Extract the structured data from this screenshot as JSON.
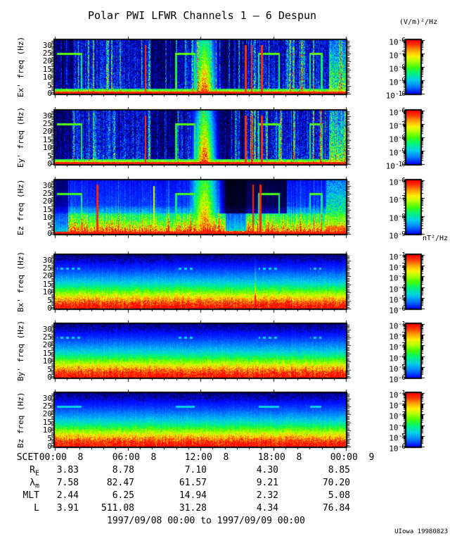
{
  "title": "Polar PWI LFWR Channels 1 — 6 Despun",
  "footer": "1997/09/08 00:00 to 1997/09/09 00:00",
  "credit": "UIowa 19980823",
  "chart_data": {
    "type": "heatmap",
    "title": "Polar PWI LFWR Channels 1 — 6 Despun",
    "x_axis": {
      "label": "SCET",
      "major_ticks": [
        "00:00",
        "06:00",
        "12:00",
        "18:00",
        "00:00"
      ],
      "tick_day": [
        "8",
        "8",
        "8",
        "8",
        "9"
      ],
      "minor_tick_interval_hours": 1,
      "start": "1997/09/08 00:00",
      "end": "1997/09/09 00:00"
    },
    "y_axis": {
      "unit": "Hz",
      "ticks": [
        0,
        5,
        10,
        15,
        20,
        25,
        30
      ],
      "lim": [
        0,
        33.4
      ]
    },
    "colorbar_units": {
      "electric": "(V/m)²/Hz",
      "magnetic": "nT²/Hz"
    },
    "panels": [
      {
        "id": "ex",
        "ylabel": "Ex' freq (Hz)",
        "kind": "electric",
        "seed": 101,
        "colorbar_exponents": [
          "-6",
          "-7",
          "-8",
          "-9",
          "-10"
        ]
      },
      {
        "id": "ey",
        "ylabel": "Ey' freq (Hz)",
        "kind": "electric",
        "seed": 202,
        "colorbar_exponents": [
          "-6",
          "-7",
          "-8",
          "-9",
          "-10"
        ]
      },
      {
        "id": "ez",
        "ylabel": "Ez freq (Hz)",
        "kind": "electric_band",
        "seed": 303,
        "colorbar_exponents": [
          "-6",
          "-7",
          "-8",
          "-9"
        ]
      },
      {
        "id": "bx",
        "ylabel": "Bx' freq (Hz)",
        "kind": "magnetic",
        "seed": 404,
        "dash": true,
        "vline": 0.688,
        "colorbar_exponents": [
          "-1",
          "-2",
          "-3",
          "-4",
          "-5",
          "-6"
        ]
      },
      {
        "id": "by",
        "ylabel": "By' freq (Hz)",
        "kind": "magnetic",
        "seed": 505,
        "dash": true,
        "colorbar_exponents": [
          "-1",
          "-2",
          "-3",
          "-4",
          "-5",
          "-6"
        ]
      },
      {
        "id": "bz",
        "ylabel": "Bz freq (Hz)",
        "kind": "magnetic",
        "seed": 606,
        "dash": false,
        "colorbar_exponents": [
          "-1",
          "-2",
          "-3",
          "-4",
          "-5",
          "-6"
        ]
      }
    ],
    "features": {
      "hline_freq_hz": 25,
      "hline_segments": [
        [
          0.005,
          0.09
        ],
        [
          0.415,
          0.48
        ],
        [
          0.7,
          0.77
        ],
        [
          0.875,
          0.915
        ]
      ],
      "staples": [
        0.09,
        0.415,
        0.48,
        0.7,
        0.77,
        0.875,
        0.915
      ],
      "electric": {
        "bottom_band_hz": 1.5,
        "blob": {
          "x": 0.513,
          "sigma": 0.022
        },
        "red_verticals": [
          0.31,
          0.655,
          0.675,
          0.71
        ],
        "dark_zones": [
          [
            0.0,
            0.065
          ],
          [
            0.33,
            0.42
          ],
          [
            0.56,
            0.655
          ]
        ],
        "bright_right": [
          0.94,
          1.0
        ]
      },
      "electric_band": {
        "band_top_hz": 12.5,
        "red_verticals": [
          0.145,
          0.68,
          0.705
        ],
        "yellow_vertical": 0.34,
        "dark_zones": [
          [
            0.565,
            0.795
          ]
        ],
        "suppressed_band": [
          0.585,
          0.655
        ]
      }
    },
    "ephemeris": {
      "rows": [
        {
          "id": "re",
          "label": "R",
          "sub": "E",
          "values": [
            "3.83",
            "8.78",
            "7.10",
            "4.30",
            "8.85"
          ]
        },
        {
          "id": "lm",
          "label": "λ",
          "sub": "m",
          "values": [
            "7.58",
            "82.47",
            "61.57",
            "9.21",
            "70.20"
          ]
        },
        {
          "id": "mlt",
          "label": "MLT",
          "sub": "",
          "values": [
            "2.44",
            "6.25",
            "14.94",
            "2.32",
            "5.08"
          ]
        },
        {
          "id": "l",
          "label": "L",
          "sub": "",
          "values": [
            "3.91",
            "511.08",
            "31.28",
            "4.34",
            "76.84"
          ]
        }
      ]
    }
  }
}
